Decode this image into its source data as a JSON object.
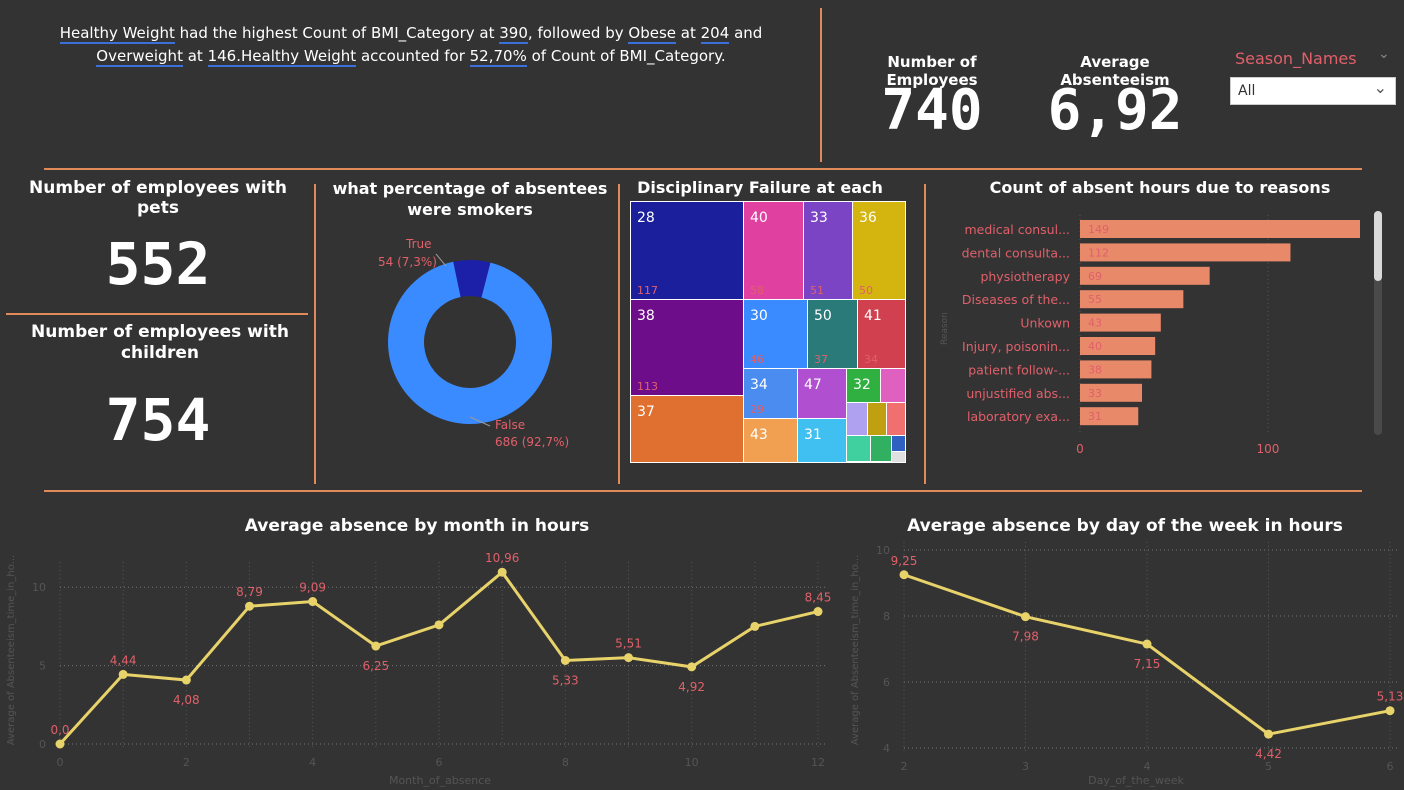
{
  "narrative": {
    "p1": "had the highest Count of BMI_Category at",
    "t1": "Healthy Weight",
    "v1": "390",
    "p2": ", followed by",
    "t2": "Obese",
    "p3": "at",
    "v2": "204",
    "p4": "and",
    "t3": "Overweight",
    "p5": "at",
    "v3": "146.",
    "t4": "Healthy Weight",
    "p6": "accounted for",
    "v4": "52,70%",
    "p7": "of Count of BMI_Category."
  },
  "kpis": {
    "employees_label": "Number of Employees",
    "employees_value": "740",
    "absent_label": "Average Absenteeism",
    "absent_value": "6,92",
    "pets_label": "Number of employees with pets",
    "pets_value": "552",
    "children_label": "Number of employees with children",
    "children_value": "754"
  },
  "slicer": {
    "title": "Season_Names",
    "value": "All"
  },
  "colors": {
    "accent": "#e08a5a",
    "line": "#e8d36a",
    "label_red": "#e0606a",
    "donut_false": "#3a8bff",
    "donut_true": "#1c20a8"
  },
  "donut": {
    "title": "what percentage of absentees were smokers",
    "true_label": "True",
    "true_value": "54 (7,3%)",
    "false_label": "False",
    "false_value": "686 (92,7%)",
    "true_fraction": 0.073
  },
  "treemap": {
    "title": "Disciplinary Failure at each age",
    "cells": [
      {
        "age": "28",
        "count": "117",
        "color": "#1c1f9c"
      },
      {
        "age": "40",
        "count": "58",
        "color": "#e040a0"
      },
      {
        "age": "33",
        "count": "51",
        "color": "#7a44c4"
      },
      {
        "age": "36",
        "count": "50",
        "color": "#d4b510"
      },
      {
        "age": "38",
        "count": "113",
        "color": "#6e0d8a"
      },
      {
        "age": "30",
        "count": "46",
        "color": "#3a8bff"
      },
      {
        "age": "50",
        "count": "37",
        "color": "#2a7a7a"
      },
      {
        "age": "41",
        "count": "34",
        "color": "#d0404e"
      },
      {
        "age": "37",
        "count": "",
        "color": "#e07030"
      },
      {
        "age": "34",
        "count": "29",
        "color": "#4a8cf0"
      },
      {
        "age": "47",
        "count": "",
        "color": "#b050d0"
      },
      {
        "age": "32",
        "count": "",
        "color": "#2fb040"
      },
      {
        "age": "43",
        "count": "",
        "color": "#f0a050"
      },
      {
        "age": "31",
        "count": "",
        "color": "#40c0f0"
      }
    ]
  },
  "reasons": {
    "title": "Count of absent hours due to reasons",
    "axis_label": "Reason",
    "ticks": [
      "0",
      "100"
    ]
  },
  "monthly": {
    "title": "Average absence by month in hours",
    "xlabel": "Month_of_absence",
    "ylabel": "Average of Absenteeism_time_in_ho..."
  },
  "weekday": {
    "title": "Average absence by day of the week in hours",
    "xlabel": "Day_of_the_week",
    "ylabel": "Average of Absenteeism_time_in_ho..."
  },
  "chart_data": [
    {
      "type": "bar",
      "title": "Count of absent hours due to reasons",
      "ylabel": "Reason",
      "categories": [
        "medical consul...",
        "dental consulta...",
        "physiotherapy",
        "Diseases of the...",
        "Unkown",
        "Injury, poisonin...",
        "patient follow-...",
        "unjustified abs...",
        "laboratory exa..."
      ],
      "values": [
        149,
        112,
        69,
        55,
        43,
        40,
        38,
        33,
        31
      ],
      "xlim": [
        0,
        149
      ],
      "xticks": [
        0,
        100
      ]
    },
    {
      "type": "line",
      "title": "Average absence by month in hours",
      "xlabel": "Month_of_absence",
      "ylabel": "Average of Absenteeism_time_in_ho...",
      "x": [
        0,
        1,
        2,
        3,
        4,
        5,
        6,
        7,
        8,
        9,
        10,
        11,
        12
      ],
      "values": [
        0.0,
        4.44,
        4.08,
        8.79,
        9.09,
        6.25,
        7.6,
        10.96,
        5.33,
        5.51,
        4.92,
        7.5,
        8.45
      ],
      "labels": [
        "0,0",
        "4,44",
        "4,08",
        "8,79",
        "9,09",
        "6,25",
        "",
        "10,96",
        "5,33",
        "5,51",
        "4,92",
        "",
        "8,45"
      ],
      "xticks": [
        0,
        2,
        4,
        6,
        8,
        10,
        12
      ],
      "yticks": [
        0,
        5,
        10
      ],
      "ylim": [
        0,
        11.5
      ]
    },
    {
      "type": "line",
      "title": "Average absence by day of the week in hours",
      "xlabel": "Day_of_the_week",
      "ylabel": "Average of Absenteeism_time_in_ho...",
      "x": [
        2,
        3,
        4,
        5,
        6
      ],
      "values": [
        9.25,
        7.98,
        7.15,
        4.42,
        5.13
      ],
      "labels": [
        "9,25",
        "7,98",
        "7,15",
        "4,42",
        "5,13"
      ],
      "xticks": [
        2,
        3,
        4,
        5,
        6
      ],
      "yticks": [
        4,
        6,
        8,
        10
      ],
      "ylim": [
        4,
        10
      ]
    },
    {
      "type": "pie",
      "title": "what percentage of absentees were smokers",
      "categories": [
        "True",
        "False"
      ],
      "values": [
        54,
        686
      ]
    }
  ]
}
